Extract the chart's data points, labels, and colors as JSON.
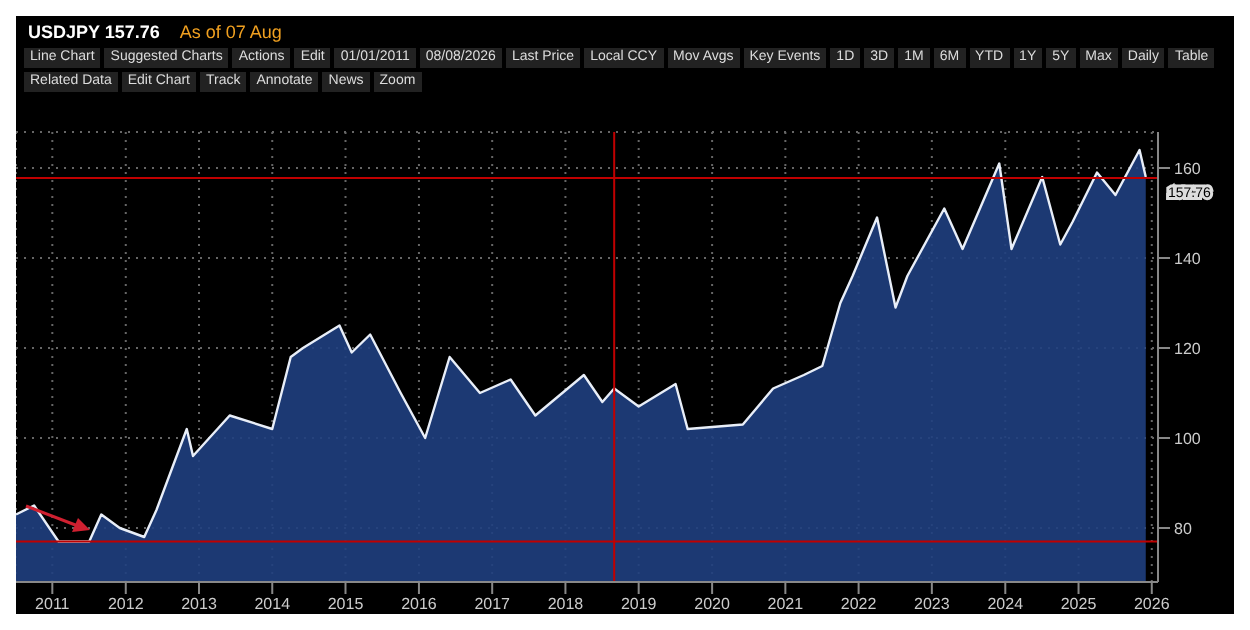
{
  "chart_data": {
    "type": "area",
    "title": "USDJPY 157.76",
    "subtitle": "As of 07 Aug",
    "annotations": [
      "Line Chart",
      "Suggested Charts",
      "Actions",
      "Edit",
      "01/01/2011",
      "08/08/2026",
      "Last Price",
      "Local CCY",
      "Mov Avgs",
      "Key Events",
      "1D",
      "3D",
      "1M",
      "6M",
      "YTD",
      "1Y",
      "5Y",
      "Max",
      "Daily",
      "Table",
      "Related Data",
      "Edit Chart",
      "Track",
      "Annotate",
      "News",
      "Zoom"
    ],
    "x": [
      "2011-01",
      "2011-04",
      "2011-08",
      "2012-01",
      "2012-03",
      "2012-06",
      "2012-10",
      "2012-12",
      "2013-05",
      "2013-06",
      "2013-12",
      "2014-07",
      "2014-10",
      "2014-12",
      "2015-06",
      "2015-08",
      "2015-11",
      "2016-04",
      "2016-08",
      "2016-12",
      "2017-05",
      "2017-10",
      "2018-02",
      "2018-10",
      "2019-01",
      "2019-03",
      "2019-07",
      "2020-01",
      "2020-03",
      "2020-12",
      "2021-05",
      "2021-10",
      "2022-01",
      "2022-04",
      "2022-06",
      "2022-10",
      "2023-01",
      "2023-03",
      "2023-09",
      "2023-12",
      "2024-06",
      "2024-08",
      "2025-01",
      "2025-04",
      "2025-06",
      "2025-10",
      "2026-01",
      "2026-05",
      "2026-06"
    ],
    "series": [
      {
        "color": "#1f3f80",
        "values": [
          83,
          85,
          77,
          77,
          83,
          80,
          78,
          84,
          102,
          96,
          105,
          102,
          118,
          120,
          125,
          119,
          123,
          110,
          100,
          118,
          110,
          113,
          105,
          114,
          108,
          111,
          107,
          112,
          102,
          103,
          111,
          114,
          116,
          130,
          136,
          149,
          129,
          136,
          151,
          142,
          161,
          142,
          158,
          143,
          148,
          159,
          154,
          164,
          158
        ]
      }
    ],
    "xlim": [
      "2011-01",
      "2026-08"
    ],
    "xticks": [
      {
        "value": "2011-07",
        "label": "2011"
      },
      {
        "value": "2012-07",
        "label": "2012"
      },
      {
        "value": "2013-07",
        "label": "2013"
      },
      {
        "value": "2014-07",
        "label": "2014"
      },
      {
        "value": "2015-07",
        "label": "2015"
      },
      {
        "value": "2016-07",
        "label": "2016"
      },
      {
        "value": "2017-07",
        "label": "2017"
      },
      {
        "value": "2018-07",
        "label": "2018"
      },
      {
        "value": "2019-07",
        "label": "2019"
      },
      {
        "value": "2020-07",
        "label": "2020"
      },
      {
        "value": "2021-07",
        "label": "2021"
      },
      {
        "value": "2022-07",
        "label": "2022"
      },
      {
        "value": "2023-07",
        "label": "2023"
      },
      {
        "value": "2024-07",
        "label": "2024"
      },
      {
        "value": "2025-07",
        "label": "2025"
      },
      {
        "value": "2026-07",
        "label": "2026"
      }
    ],
    "ylim": [
      68,
      168
    ],
    "yticks": [
      80,
      100,
      120,
      140,
      160
    ],
    "ref_lines": [
      {
        "axis": "y",
        "value": 157.76,
        "label": "157.76",
        "color": "#c00000"
      },
      {
        "axis": "y",
        "value": 77,
        "color": "#c00000"
      },
      {
        "axis": "x",
        "value": "2019-03",
        "color": "#c00000"
      }
    ],
    "grid": true,
    "marker": "none",
    "line_style": "solid"
  }
}
